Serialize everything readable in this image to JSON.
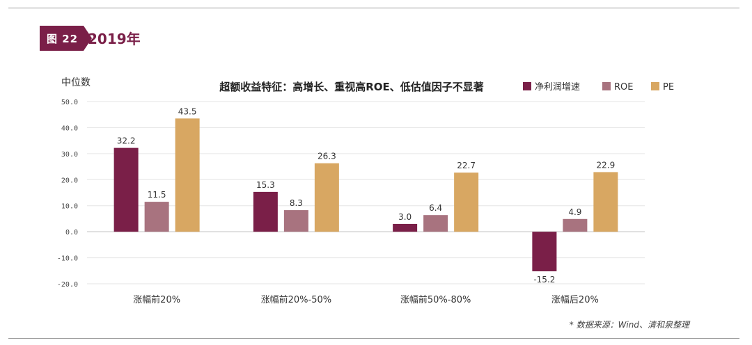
{
  "figure": {
    "label": "图 22",
    "title": "2019年"
  },
  "source": "* 数据来源：Wind、清和泉整理",
  "chart_data": {
    "type": "bar",
    "title": "超额收益特征：高增长、重视高ROE、低估值因子不显著",
    "ylabel": "中位数",
    "categories": [
      "涨幅前20%",
      "涨幅前20%-50%",
      "涨幅前50%-80%",
      "涨幅后20%"
    ],
    "series": [
      {
        "name": "净利润增速",
        "values": [
          32.2,
          15.3,
          3.0,
          -15.2
        ],
        "color": "#7a1f48"
      },
      {
        "name": "ROE",
        "values": [
          11.5,
          8.3,
          6.4,
          4.9
        ],
        "color": "#a8737f"
      },
      {
        "name": "PE",
        "values": [
          43.5,
          26.3,
          22.7,
          22.9
        ],
        "color": "#d8a762"
      }
    ],
    "ylim": [
      -20,
      50
    ],
    "yticks": [
      "-20.0",
      "-10.0",
      "0.0",
      "10.0",
      "20.0",
      "30.0",
      "40.0",
      "50.0"
    ],
    "grid": true,
    "legend": "top-right"
  }
}
